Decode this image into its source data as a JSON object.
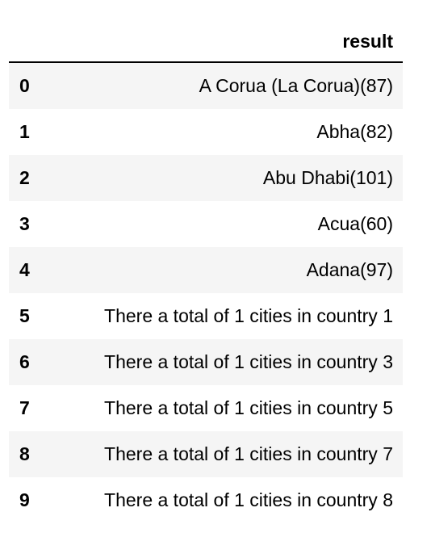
{
  "table": {
    "column_header": "result",
    "rows": [
      {
        "index": "0",
        "result": "A Corua (La Corua)(87)"
      },
      {
        "index": "1",
        "result": "Abha(82)"
      },
      {
        "index": "2",
        "result": "Abu Dhabi(101)"
      },
      {
        "index": "3",
        "result": "Acua(60)"
      },
      {
        "index": "4",
        "result": "Adana(97)"
      },
      {
        "index": "5",
        "result": "There a total of 1 cities in country 1"
      },
      {
        "index": "6",
        "result": "There a total of 1 cities in country 3"
      },
      {
        "index": "7",
        "result": "There a total of 1 cities in country 5"
      },
      {
        "index": "8",
        "result": "There a total of 1 cities in country 7"
      },
      {
        "index": "9",
        "result": "There a total of 1 cities in country 8"
      }
    ]
  },
  "colors": {
    "striped_row_background": "#f5f5f5",
    "header_rule": "#000000",
    "text": "#000000"
  }
}
